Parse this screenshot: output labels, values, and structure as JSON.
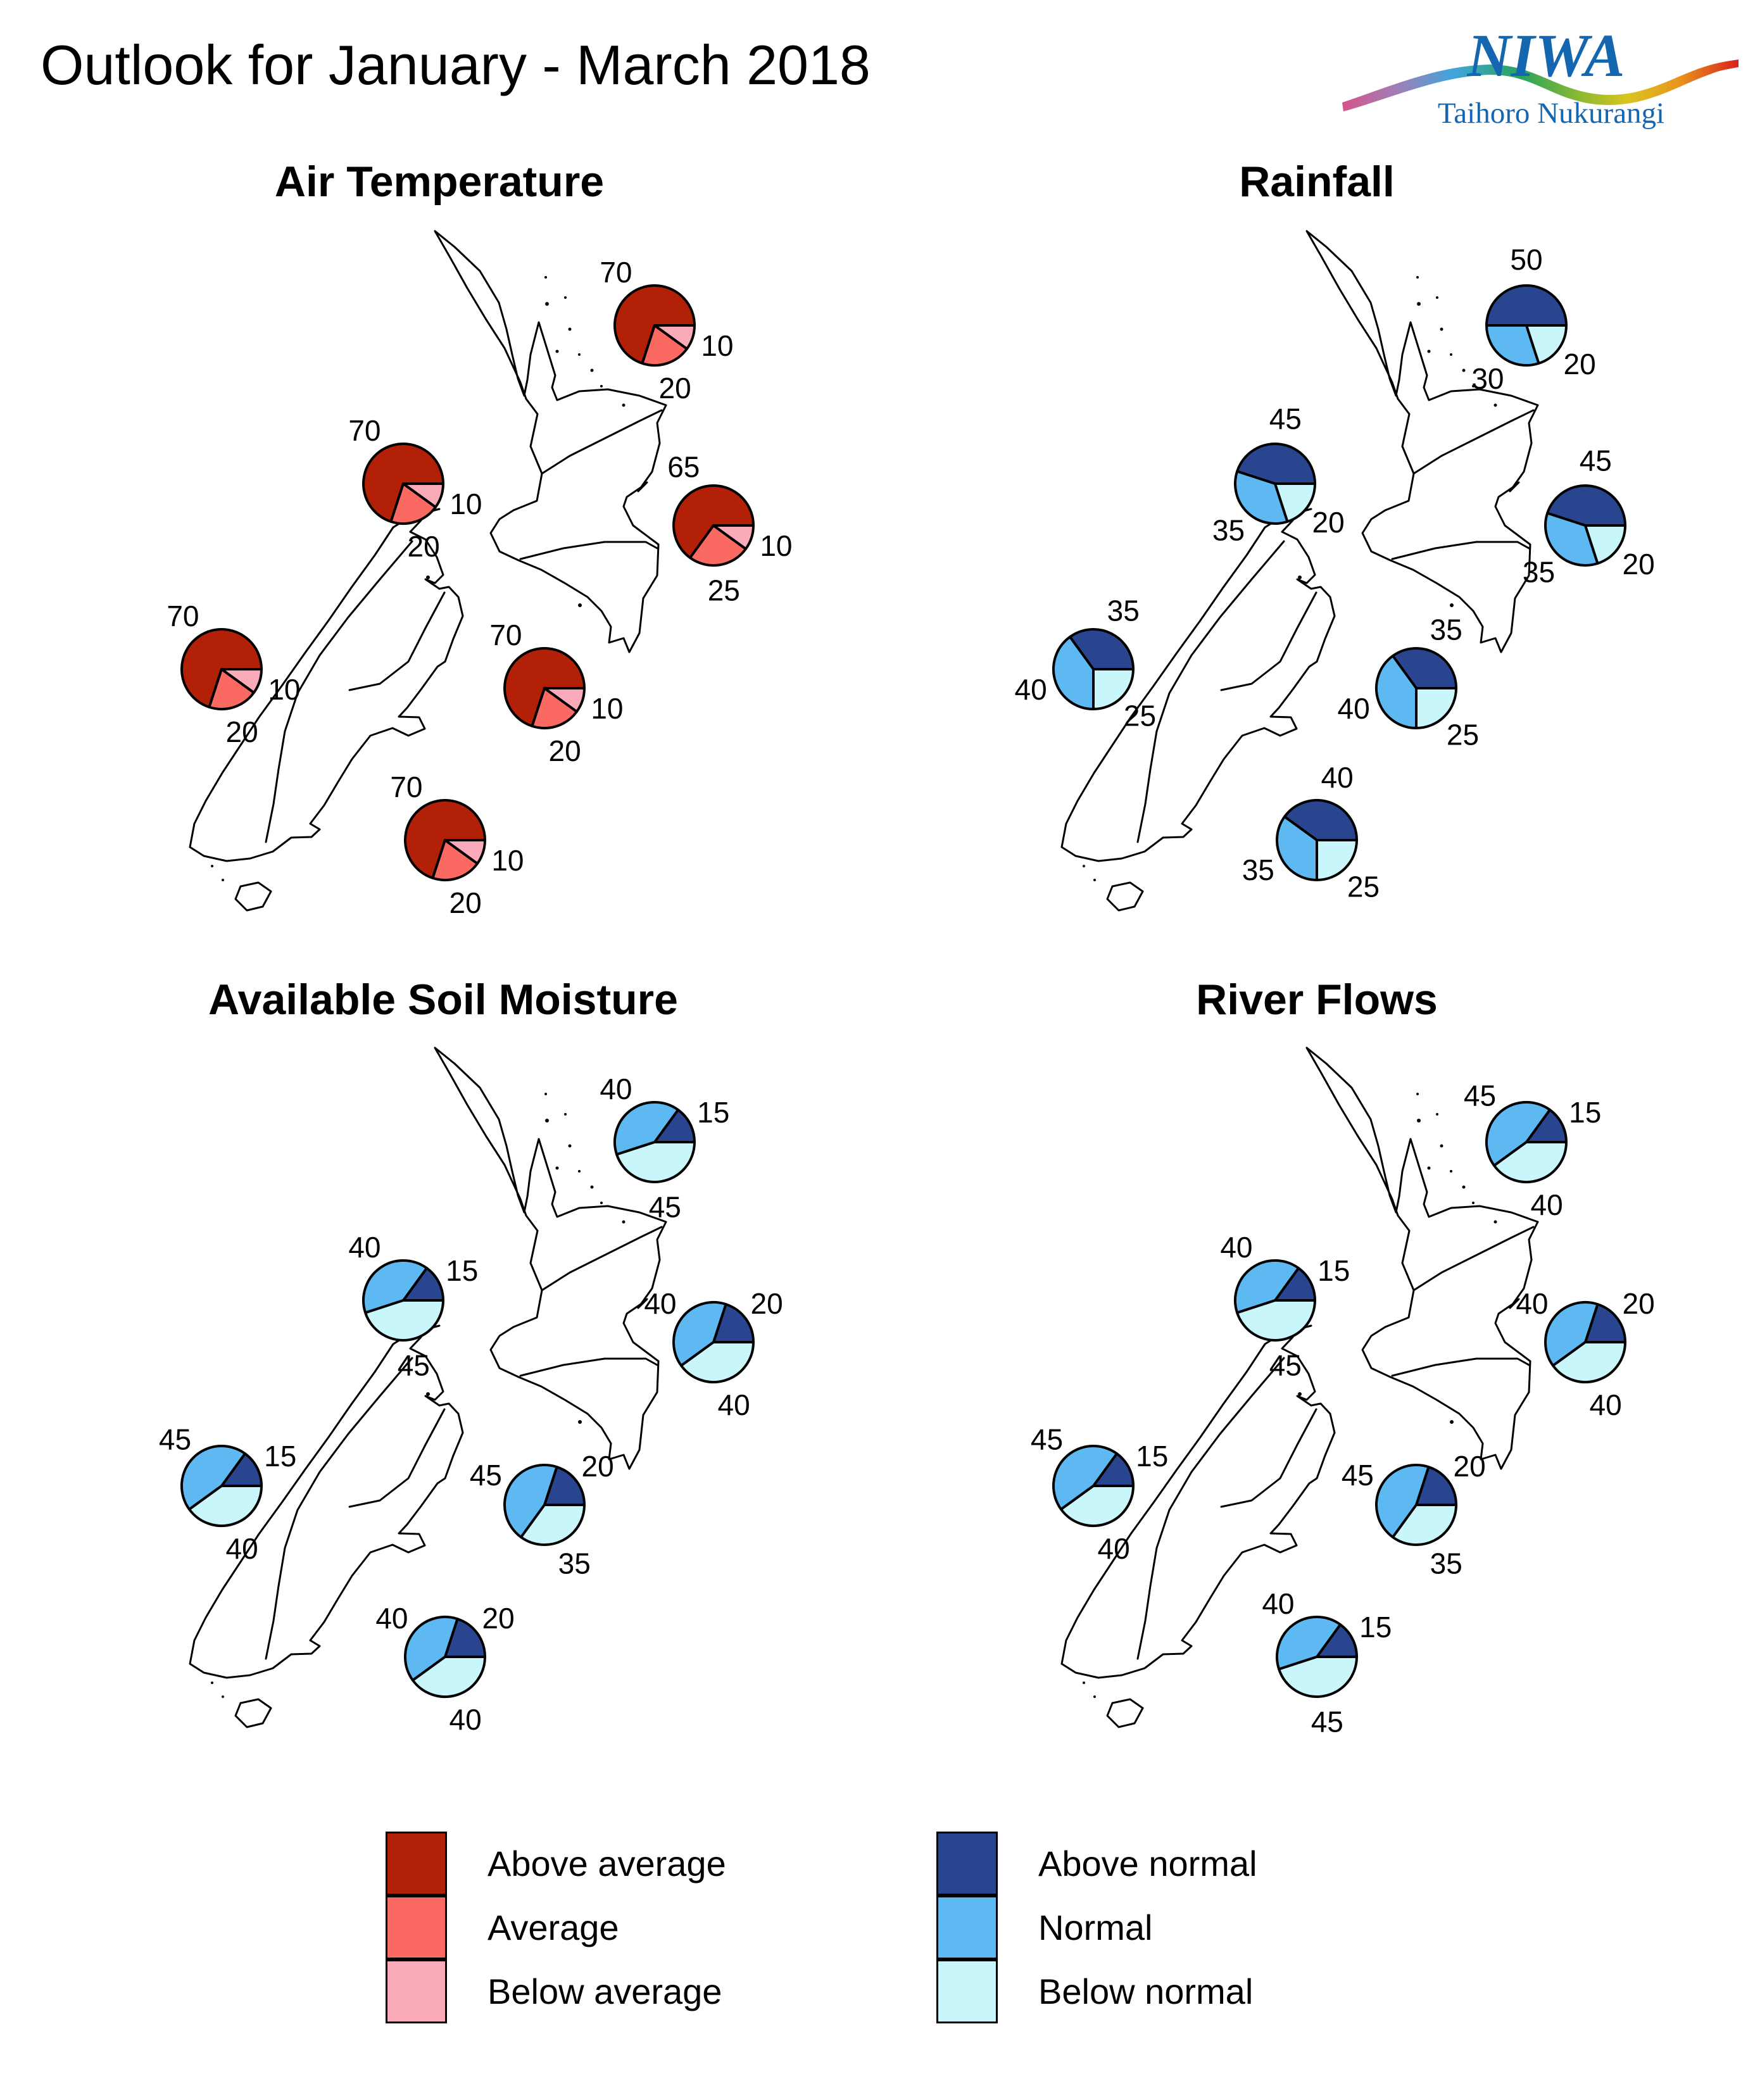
{
  "title": "Outlook for January - March 2018",
  "logo": {
    "name": "NIWA",
    "subtitle": "Taihoro Nukurangi"
  },
  "palettes": {
    "red": [
      "#b32008",
      "#fb6a62",
      "#f9abba"
    ],
    "blue": [
      "#2a4590",
      "#5eb9f2",
      "#c9f6fb"
    ]
  },
  "legend": {
    "red": [
      {
        "label": "Above average",
        "color": "#b32008"
      },
      {
        "label": "Average",
        "color": "#fb6a62"
      },
      {
        "label": "Below average",
        "color": "#f9abba"
      }
    ],
    "blue": [
      {
        "label": "Above normal",
        "color": "#2a4590"
      },
      {
        "label": "Normal",
        "color": "#5eb9f2"
      },
      {
        "label": "Below normal",
        "color": "#c9f6fb"
      }
    ]
  },
  "chart_data": [
    {
      "type": "pie",
      "panel": "Air Temperature",
      "palette": "red",
      "categories": [
        "Above average",
        "Average",
        "Below average"
      ],
      "sites": [
        {
          "id": "north",
          "values": [
            70,
            20,
            10
          ]
        },
        {
          "id": "west_ni",
          "values": [
            70,
            20,
            10
          ]
        },
        {
          "id": "east_ni",
          "values": [
            65,
            25,
            10
          ]
        },
        {
          "id": "west_si",
          "values": [
            70,
            20,
            10
          ]
        },
        {
          "id": "east_si",
          "values": [
            70,
            20,
            10
          ]
        },
        {
          "id": "south",
          "values": [
            70,
            20,
            10
          ]
        }
      ]
    },
    {
      "type": "pie",
      "panel": "Rainfall",
      "palette": "blue",
      "categories": [
        "Above normal",
        "Normal",
        "Below normal"
      ],
      "sites": [
        {
          "id": "north",
          "values": [
            50,
            30,
            20
          ]
        },
        {
          "id": "west_ni",
          "values": [
            45,
            35,
            20
          ]
        },
        {
          "id": "east_ni",
          "values": [
            45,
            35,
            20
          ]
        },
        {
          "id": "west_si",
          "values": [
            35,
            40,
            25
          ]
        },
        {
          "id": "east_si",
          "values": [
            35,
            40,
            25
          ]
        },
        {
          "id": "south",
          "values": [
            40,
            35,
            25
          ]
        }
      ]
    },
    {
      "type": "pie",
      "panel": "Available Soil Moisture",
      "palette": "blue",
      "categories": [
        "Above normal",
        "Normal",
        "Below normal"
      ],
      "sites": [
        {
          "id": "north",
          "values": [
            15,
            40,
            45
          ]
        },
        {
          "id": "west_ni",
          "values": [
            15,
            40,
            45
          ]
        },
        {
          "id": "east_ni",
          "values": [
            20,
            40,
            40
          ]
        },
        {
          "id": "west_si",
          "values": [
            15,
            45,
            40
          ]
        },
        {
          "id": "east_si",
          "values": [
            20,
            45,
            35
          ]
        },
        {
          "id": "south",
          "values": [
            20,
            40,
            40
          ]
        }
      ]
    },
    {
      "type": "pie",
      "panel": "River Flows",
      "palette": "blue",
      "categories": [
        "Above normal",
        "Normal",
        "Below normal"
      ],
      "sites": [
        {
          "id": "north",
          "values": [
            15,
            45,
            40
          ]
        },
        {
          "id": "west_ni",
          "values": [
            15,
            40,
            45
          ]
        },
        {
          "id": "east_ni",
          "values": [
            20,
            40,
            40
          ]
        },
        {
          "id": "west_si",
          "values": [
            15,
            45,
            40
          ]
        },
        {
          "id": "east_si",
          "values": [
            20,
            45,
            35
          ]
        },
        {
          "id": "south",
          "values": [
            15,
            40,
            45
          ]
        }
      ]
    }
  ]
}
